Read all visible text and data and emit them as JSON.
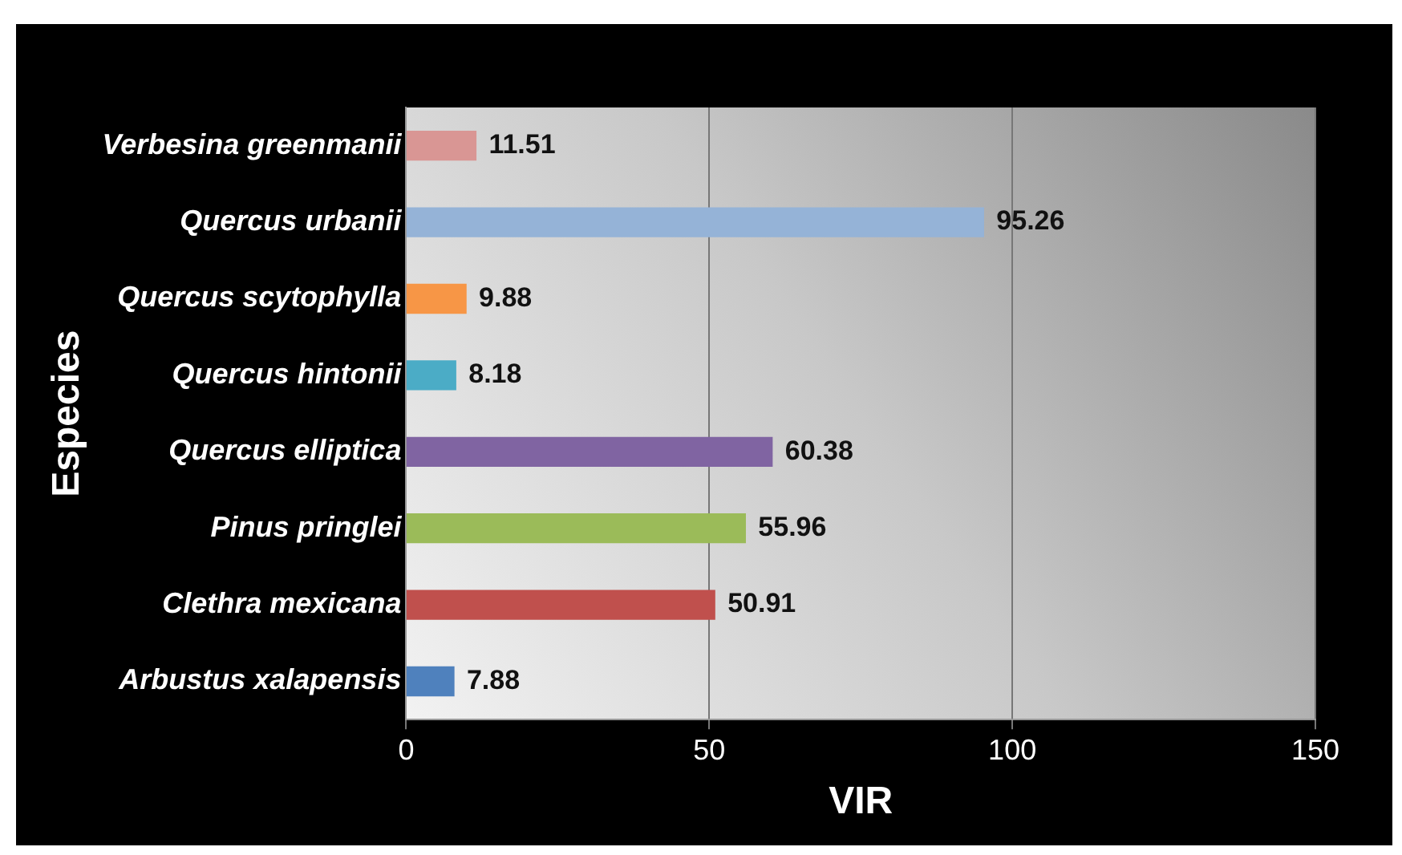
{
  "chart_data": {
    "type": "bar",
    "orientation": "horizontal",
    "xlabel": "VIR",
    "ylabel": "Especies",
    "categories": [
      "Verbesina greenmanii",
      "Quercus urbanii",
      "Quercus scytophylla",
      "Quercus hintonii",
      "Quercus elliptica",
      "Pinus pringlei",
      "Clethra mexicana",
      "Arbustus xalapensis"
    ],
    "values": [
      11.51,
      95.26,
      9.88,
      8.18,
      60.38,
      55.96,
      50.91,
      7.88
    ],
    "colors": [
      "#d99694",
      "#95b3d7",
      "#f79646",
      "#4bacc6",
      "#8064a2",
      "#9bbb59",
      "#c0504d",
      "#4f81bd"
    ],
    "xlim": [
      0,
      150
    ],
    "xticks": [
      0,
      50,
      100,
      150
    ],
    "grid": "x",
    "legend": false,
    "data_labels": true
  }
}
